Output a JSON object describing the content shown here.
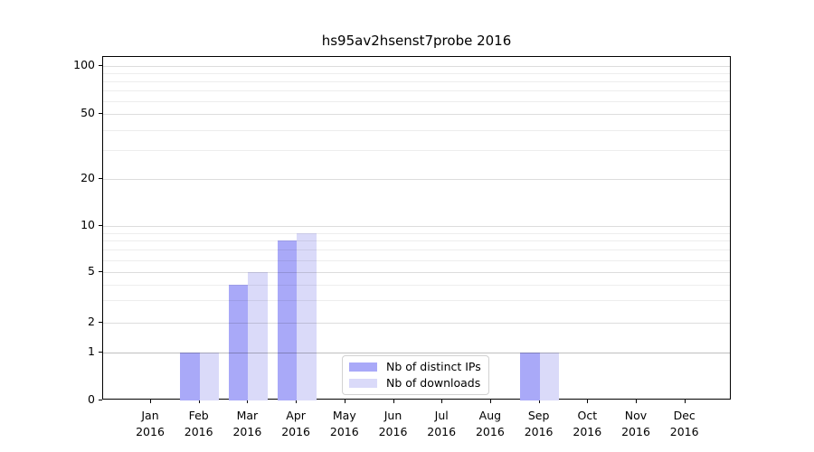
{
  "title": "hs95av2hsenst7probe 2016",
  "chart_data": {
    "type": "bar",
    "title": "hs95av2hsenst7probe 2016",
    "categories": [
      "Jan 2016",
      "Feb 2016",
      "Mar 2016",
      "Apr 2016",
      "May 2016",
      "Jun 2016",
      "Jul 2016",
      "Aug 2016",
      "Sep 2016",
      "Oct 2016",
      "Nov 2016",
      "Dec 2016"
    ],
    "series": [
      {
        "name": "Nb of distinct IPs",
        "color": "#a9a9f8",
        "values": [
          0,
          1,
          4,
          8,
          0,
          0,
          0,
          0,
          1,
          0,
          0,
          0
        ]
      },
      {
        "name": "Nb of downloads",
        "color": "#dadaf9",
        "values": [
          0,
          1,
          5,
          9,
          0,
          0,
          0,
          0,
          1,
          0,
          0,
          0
        ]
      }
    ],
    "y_scale": "symlog",
    "y_tick_values": [
      0,
      1,
      2,
      5,
      10,
      20,
      50,
      100
    ],
    "y_minor_values": [
      3,
      4,
      6,
      7,
      8,
      9,
      30,
      40,
      60,
      70,
      80,
      90
    ],
    "ylim": [
      0,
      110
    ],
    "xlabel": "",
    "ylabel": "",
    "grid": "horizontal major and minor gridlines",
    "legend_position": "lower center inside plot"
  },
  "x_axis": {
    "months": [
      "Jan",
      "Feb",
      "Mar",
      "Apr",
      "May",
      "Jun",
      "Jul",
      "Aug",
      "Sep",
      "Oct",
      "Nov",
      "Dec"
    ],
    "year": "2016"
  },
  "y_axis": {
    "tick_labels": [
      "0",
      "1",
      "2",
      "5",
      "10",
      "20",
      "50",
      "100"
    ]
  },
  "legend": {
    "items": [
      {
        "label": "Nb of distinct IPs",
        "color": "#a9a9f8"
      },
      {
        "label": "Nb of downloads",
        "color": "#dadaf9"
      }
    ]
  },
  "colors": {
    "bar_distinct_ips": "#a9a9f8",
    "bar_downloads": "#dadaf9",
    "grid_major": "#dcdcdc",
    "grid_minor": "#ededed",
    "grid_unit_line": "#bfbfbf",
    "spine": "#000000",
    "background": "#ffffff"
  }
}
